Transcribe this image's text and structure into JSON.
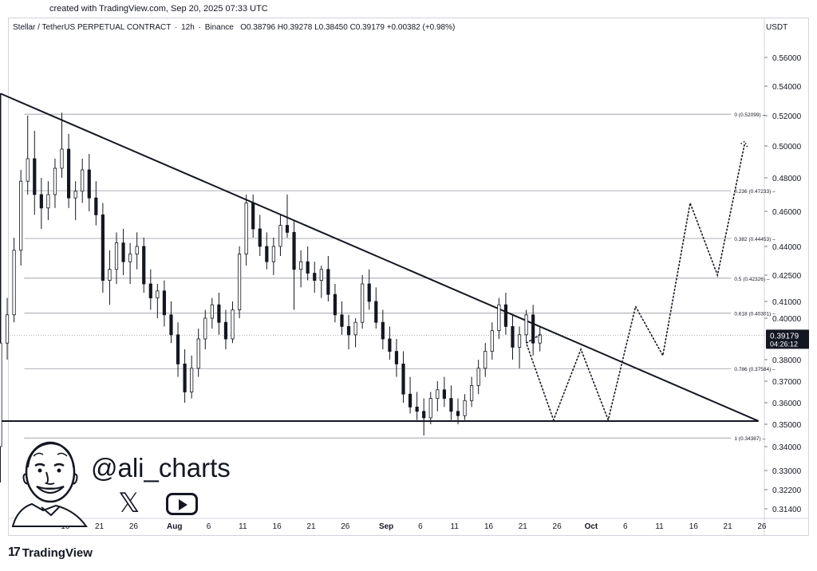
{
  "credit": "created with TradingView.com, Sep 20, 2025 07:33 UTC",
  "legend": {
    "symbol": "Stellar / TetherUS PERPETUAL CONTRACT",
    "interval": "12h",
    "exchange": "Binance",
    "open": "O0.38796",
    "high": "H0.39278",
    "low": "L0.38450",
    "close": "C0.39179",
    "change": "+0.00382 (+0.98%)"
  },
  "currency": "USDT",
  "watermark": {
    "handle": "@ali_charts",
    "brand": "TradingView",
    "icons": [
      "x-icon",
      "youtube-icon",
      "avatar-illustration"
    ]
  },
  "chart_data": {
    "type": "candlestick",
    "price_ticks": [
      "0.56000",
      "0.54000",
      "0.52000",
      "0.50000",
      "0.48000",
      "0.46000",
      "0.44000",
      "0.42500",
      "0.41000",
      "0.40000",
      "0.38000",
      "0.37000",
      "0.36000",
      "0.35000",
      "0.34000",
      "0.33000",
      "0.32200",
      "0.31400"
    ],
    "last_price": "0.39179",
    "countdown": "04:26:12",
    "x_ticks": [
      {
        "label": "16",
        "day": 16
      },
      {
        "label": "21",
        "day": 21
      },
      {
        "label": "26",
        "day": 26
      },
      {
        "label": "Aug",
        "day": 32,
        "bold": true
      },
      {
        "label": "6",
        "day": 37
      },
      {
        "label": "11",
        "day": 42
      },
      {
        "label": "16",
        "day": 47
      },
      {
        "label": "21",
        "day": 52
      },
      {
        "label": "26",
        "day": 57
      },
      {
        "label": "Sep",
        "day": 63,
        "bold": true
      },
      {
        "label": "6",
        "day": 68
      },
      {
        "label": "11",
        "day": 73
      },
      {
        "label": "16",
        "day": 78
      },
      {
        "label": "21",
        "day": 83
      },
      {
        "label": "26",
        "day": 88
      },
      {
        "label": "Oct",
        "day": 93,
        "bold": true
      },
      {
        "label": "6",
        "day": 98
      },
      {
        "label": "11",
        "day": 103
      },
      {
        "label": "16",
        "day": 108
      },
      {
        "label": "21",
        "day": 113
      },
      {
        "label": "26",
        "day": 118
      }
    ],
    "fib_levels": [
      {
        "label": "0 (0.52099)",
        "price": 0.52099
      },
      {
        "label": "0.236 (0.47233)",
        "price": 0.47233
      },
      {
        "label": "0.382 (0.44453)",
        "price": 0.44453
      },
      {
        "label": "0.5 (0.42326)",
        "price": 0.42326
      },
      {
        "label": "0.618 (0.40301)",
        "price": 0.40301
      },
      {
        "label": "0.786 (0.37584)",
        "price": 0.37584
      },
      {
        "label": "1 (0.34387)",
        "price": 0.34387
      }
    ],
    "triangle": {
      "apex_top": {
        "day": 6.5,
        "price": 0.535
      },
      "base_start": {
        "day": 6.5,
        "price": 0.3515
      },
      "apex_right": {
        "day": 117.5,
        "price": 0.3515
      }
    },
    "projection": [
      {
        "day": 83.5,
        "price": 0.388
      },
      {
        "day": 87.5,
        "price": 0.352
      },
      {
        "day": 91.5,
        "price": 0.385
      },
      {
        "day": 95.5,
        "price": 0.352
      },
      {
        "day": 99.5,
        "price": 0.407
      },
      {
        "day": 103.5,
        "price": 0.382
      },
      {
        "day": 107.5,
        "price": 0.465
      },
      {
        "day": 111.5,
        "price": 0.425
      },
      {
        "day": 115.5,
        "price": 0.502
      }
    ],
    "candles": [
      [
        0.34,
        0.395,
        0.325,
        0.388
      ],
      [
        0.388,
        0.412,
        0.38,
        0.402
      ],
      [
        0.402,
        0.445,
        0.398,
        0.438
      ],
      [
        0.438,
        0.485,
        0.43,
        0.478
      ],
      [
        0.478,
        0.52,
        0.47,
        0.492
      ],
      [
        0.492,
        0.51,
        0.458,
        0.47
      ],
      [
        0.47,
        0.48,
        0.45,
        0.462
      ],
      [
        0.462,
        0.478,
        0.455,
        0.47
      ],
      [
        0.47,
        0.492,
        0.462,
        0.486
      ],
      [
        0.486,
        0.522,
        0.48,
        0.498
      ],
      [
        0.498,
        0.508,
        0.462,
        0.468
      ],
      [
        0.468,
        0.478,
        0.455,
        0.472
      ],
      [
        0.472,
        0.492,
        0.465,
        0.485
      ],
      [
        0.485,
        0.495,
        0.46,
        0.468
      ],
      [
        0.468,
        0.478,
        0.452,
        0.458
      ],
      [
        0.458,
        0.465,
        0.415,
        0.422
      ],
      [
        0.422,
        0.438,
        0.408,
        0.428
      ],
      [
        0.428,
        0.448,
        0.42,
        0.442
      ],
      [
        0.442,
        0.45,
        0.425,
        0.432
      ],
      [
        0.432,
        0.442,
        0.42,
        0.436
      ],
      [
        0.436,
        0.448,
        0.428,
        0.44
      ],
      [
        0.44,
        0.445,
        0.415,
        0.42
      ],
      [
        0.42,
        0.428,
        0.405,
        0.412
      ],
      [
        0.412,
        0.42,
        0.4,
        0.416
      ],
      [
        0.416,
        0.422,
        0.396,
        0.402
      ],
      [
        0.402,
        0.41,
        0.388,
        0.392
      ],
      [
        0.392,
        0.398,
        0.372,
        0.378
      ],
      [
        0.378,
        0.385,
        0.36,
        0.365
      ],
      [
        0.365,
        0.382,
        0.362,
        0.376
      ],
      [
        0.376,
        0.395,
        0.372,
        0.39
      ],
      [
        0.39,
        0.405,
        0.385,
        0.4
      ],
      [
        0.4,
        0.412,
        0.395,
        0.408
      ],
      [
        0.408,
        0.415,
        0.392,
        0.398
      ],
      [
        0.398,
        0.405,
        0.385,
        0.39
      ],
      [
        0.39,
        0.41,
        0.388,
        0.405
      ],
      [
        0.405,
        0.44,
        0.4,
        0.436
      ],
      [
        0.436,
        0.47,
        0.43,
        0.465
      ],
      [
        0.465,
        0.47,
        0.445,
        0.45
      ],
      [
        0.45,
        0.458,
        0.435,
        0.44
      ],
      [
        0.44,
        0.448,
        0.428,
        0.432
      ],
      [
        0.432,
        0.445,
        0.425,
        0.44
      ],
      [
        0.44,
        0.458,
        0.435,
        0.452
      ],
      [
        0.452,
        0.47,
        0.445,
        0.448
      ],
      [
        0.448,
        0.455,
        0.405,
        0.428
      ],
      [
        0.428,
        0.438,
        0.418,
        0.432
      ],
      [
        0.432,
        0.44,
        0.422,
        0.426
      ],
      [
        0.426,
        0.432,
        0.415,
        0.422
      ],
      [
        0.422,
        0.43,
        0.412,
        0.428
      ],
      [
        0.428,
        0.435,
        0.41,
        0.414
      ],
      [
        0.414,
        0.42,
        0.398,
        0.402
      ],
      [
        0.402,
        0.41,
        0.392,
        0.396
      ],
      [
        0.396,
        0.402,
        0.385,
        0.392
      ],
      [
        0.392,
        0.4,
        0.386,
        0.398
      ],
      [
        0.398,
        0.425,
        0.395,
        0.42
      ],
      [
        0.42,
        0.428,
        0.405,
        0.41
      ],
      [
        0.41,
        0.418,
        0.395,
        0.398
      ],
      [
        0.398,
        0.405,
        0.385,
        0.39
      ],
      [
        0.39,
        0.396,
        0.38,
        0.384
      ],
      [
        0.384,
        0.39,
        0.372,
        0.378
      ],
      [
        0.378,
        0.384,
        0.36,
        0.364
      ],
      [
        0.364,
        0.372,
        0.355,
        0.358
      ],
      [
        0.358,
        0.365,
        0.352,
        0.356
      ],
      [
        0.356,
        0.362,
        0.345,
        0.353
      ],
      [
        0.353,
        0.365,
        0.35,
        0.362
      ],
      [
        0.362,
        0.37,
        0.356,
        0.366
      ],
      [
        0.366,
        0.372,
        0.358,
        0.362
      ],
      [
        0.362,
        0.368,
        0.352,
        0.356
      ],
      [
        0.356,
        0.362,
        0.35,
        0.354
      ],
      [
        0.354,
        0.364,
        0.352,
        0.361
      ],
      [
        0.361,
        0.372,
        0.358,
        0.368
      ],
      [
        0.368,
        0.38,
        0.364,
        0.376
      ],
      [
        0.376,
        0.388,
        0.372,
        0.384
      ],
      [
        0.384,
        0.398,
        0.38,
        0.394
      ],
      [
        0.394,
        0.412,
        0.39,
        0.408
      ],
      [
        0.408,
        0.415,
        0.392,
        0.396
      ],
      [
        0.396,
        0.402,
        0.38,
        0.386
      ],
      [
        0.386,
        0.396,
        0.376,
        0.392
      ],
      [
        0.392,
        0.405,
        0.388,
        0.402
      ],
      [
        0.402,
        0.408,
        0.382,
        0.388
      ],
      [
        0.388,
        0.396,
        0.384,
        0.392
      ]
    ]
  }
}
